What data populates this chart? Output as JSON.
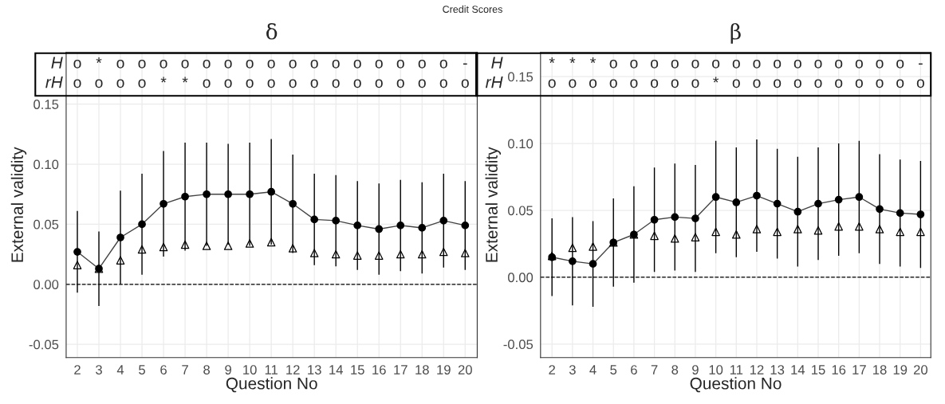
{
  "chart_data": [
    {
      "type": "line",
      "title": "δ",
      "xlabel": "Question No",
      "ylabel": "External validity",
      "x": [
        2,
        3,
        4,
        5,
        6,
        7,
        8,
        9,
        10,
        11,
        12,
        13,
        14,
        15,
        16,
        17,
        18,
        19,
        20
      ],
      "series": [
        {
          "color": "#000000",
          "marker": "circle",
          "values": [
            0.027,
            0.013,
            0.039,
            0.05,
            0.067,
            0.073,
            0.075,
            0.075,
            0.075,
            0.077,
            0.067,
            0.054,
            0.053,
            0.049,
            0.046,
            0.049,
            0.047,
            0.053,
            0.049
          ],
          "errors": [
            0.034,
            0.031,
            0.039,
            0.042,
            0.044,
            0.045,
            0.043,
            0.042,
            0.043,
            0.044,
            0.041,
            0.038,
            0.038,
            0.037,
            0.038,
            0.038,
            0.038,
            0.039,
            0.037
          ]
        },
        {
          "type": "scatter",
          "color": "#000000",
          "marker": "triangle",
          "values": [
            0.016,
            0.013,
            0.02,
            0.029,
            0.031,
            0.033,
            0.032,
            0.032,
            0.034,
            0.035,
            0.03,
            0.026,
            0.025,
            0.024,
            0.024,
            0.025,
            0.025,
            0.027,
            0.026
          ]
        }
      ],
      "xlim": [
        1.48,
        20.56
      ],
      "ylim": [
        -0.061,
        0.193
      ],
      "xticks": [
        2,
        3,
        4,
        5,
        6,
        7,
        8,
        9,
        10,
        11,
        12,
        13,
        14,
        15,
        16,
        17,
        18,
        19,
        20
      ],
      "yticks": [
        {
          "value": -0.05,
          "label": "-0.05"
        },
        {
          "value": 0,
          "label": "0.00"
        },
        {
          "value": 0.05,
          "label": "0.05"
        },
        {
          "value": 0.1,
          "label": "0.10"
        },
        {
          "value": 0.15,
          "label": "0.15"
        }
      ],
      "grid": true,
      "ref_lines": [
        {
          "axis": "y",
          "value": 0,
          "line_style": "dashed",
          "color": "#000000"
        }
      ],
      "annotations": [
        "Credit Scores",
        "H",
        "o",
        "*",
        "o",
        "o",
        "o",
        "o",
        "o",
        "o",
        "o",
        "o",
        "o",
        "o",
        "o",
        "o",
        "o",
        "o",
        "o",
        "o",
        "-",
        "rH",
        "o",
        "o",
        "o",
        "o",
        "*",
        "*",
        "o",
        "o",
        "o",
        "o",
        "o",
        "o",
        "o",
        "o",
        "o",
        "o",
        "o",
        "o",
        "o"
      ]
    },
    {
      "type": "line",
      "title": "β",
      "xlabel": "Question No",
      "ylabel": "External validity",
      "x": [
        2,
        3,
        4,
        5,
        6,
        7,
        8,
        9,
        10,
        11,
        12,
        13,
        14,
        15,
        16,
        17,
        18,
        19,
        20
      ],
      "series": [
        {
          "color": "#000000",
          "marker": "circle",
          "values": [
            0.015,
            0.012,
            0.01,
            0.026,
            0.032,
            0.043,
            0.045,
            0.044,
            0.06,
            0.056,
            0.061,
            0.055,
            0.049,
            0.055,
            0.058,
            0.06,
            0.051,
            0.048,
            0.047
          ],
          "errors": [
            0.029,
            0.033,
            0.032,
            0.033,
            0.036,
            0.039,
            0.04,
            0.04,
            0.042,
            0.041,
            0.042,
            0.041,
            0.041,
            0.042,
            0.042,
            0.042,
            0.041,
            0.04,
            0.04
          ]
        },
        {
          "type": "scatter",
          "color": "#000000",
          "marker": "triangle",
          "values": [
            0.016,
            0.022,
            0.023,
            0.026,
            0.032,
            0.031,
            0.029,
            0.03,
            0.034,
            0.032,
            0.036,
            0.034,
            0.036,
            0.035,
            0.038,
            0.038,
            0.036,
            0.034,
            0.034
          ]
        }
      ],
      "xlim": [
        1.44,
        20.5
      ],
      "ylim": [
        -0.06,
        0.168
      ],
      "xticks": [
        2,
        3,
        4,
        5,
        6,
        7,
        8,
        9,
        10,
        11,
        12,
        13,
        14,
        15,
        16,
        17,
        18,
        19,
        20
      ],
      "yticks": [
        {
          "value": -0.05,
          "label": "-0.05"
        },
        {
          "value": 0,
          "label": "0.00"
        },
        {
          "value": 0.05,
          "label": "0.05"
        },
        {
          "value": 0.1,
          "label": "0.10"
        },
        {
          "value": 0.15,
          "label": "0.15"
        }
      ],
      "grid": true,
      "ref_lines": [
        {
          "axis": "y",
          "value": 0,
          "line_style": "dashed",
          "color": "#000000"
        }
      ],
      "annotations": [
        "H",
        "*",
        "*",
        "*",
        "o",
        "o",
        "o",
        "o",
        "o",
        "o",
        "o",
        "o",
        "o",
        "o",
        "o",
        "o",
        "o",
        "o",
        "o",
        "-",
        "rH",
        "o",
        "o",
        "o",
        "o",
        "o",
        "o",
        "o",
        "o",
        "*",
        "o",
        "o",
        "o",
        "o",
        "o",
        "o",
        "o",
        "o",
        "o",
        "o"
      ]
    }
  ]
}
